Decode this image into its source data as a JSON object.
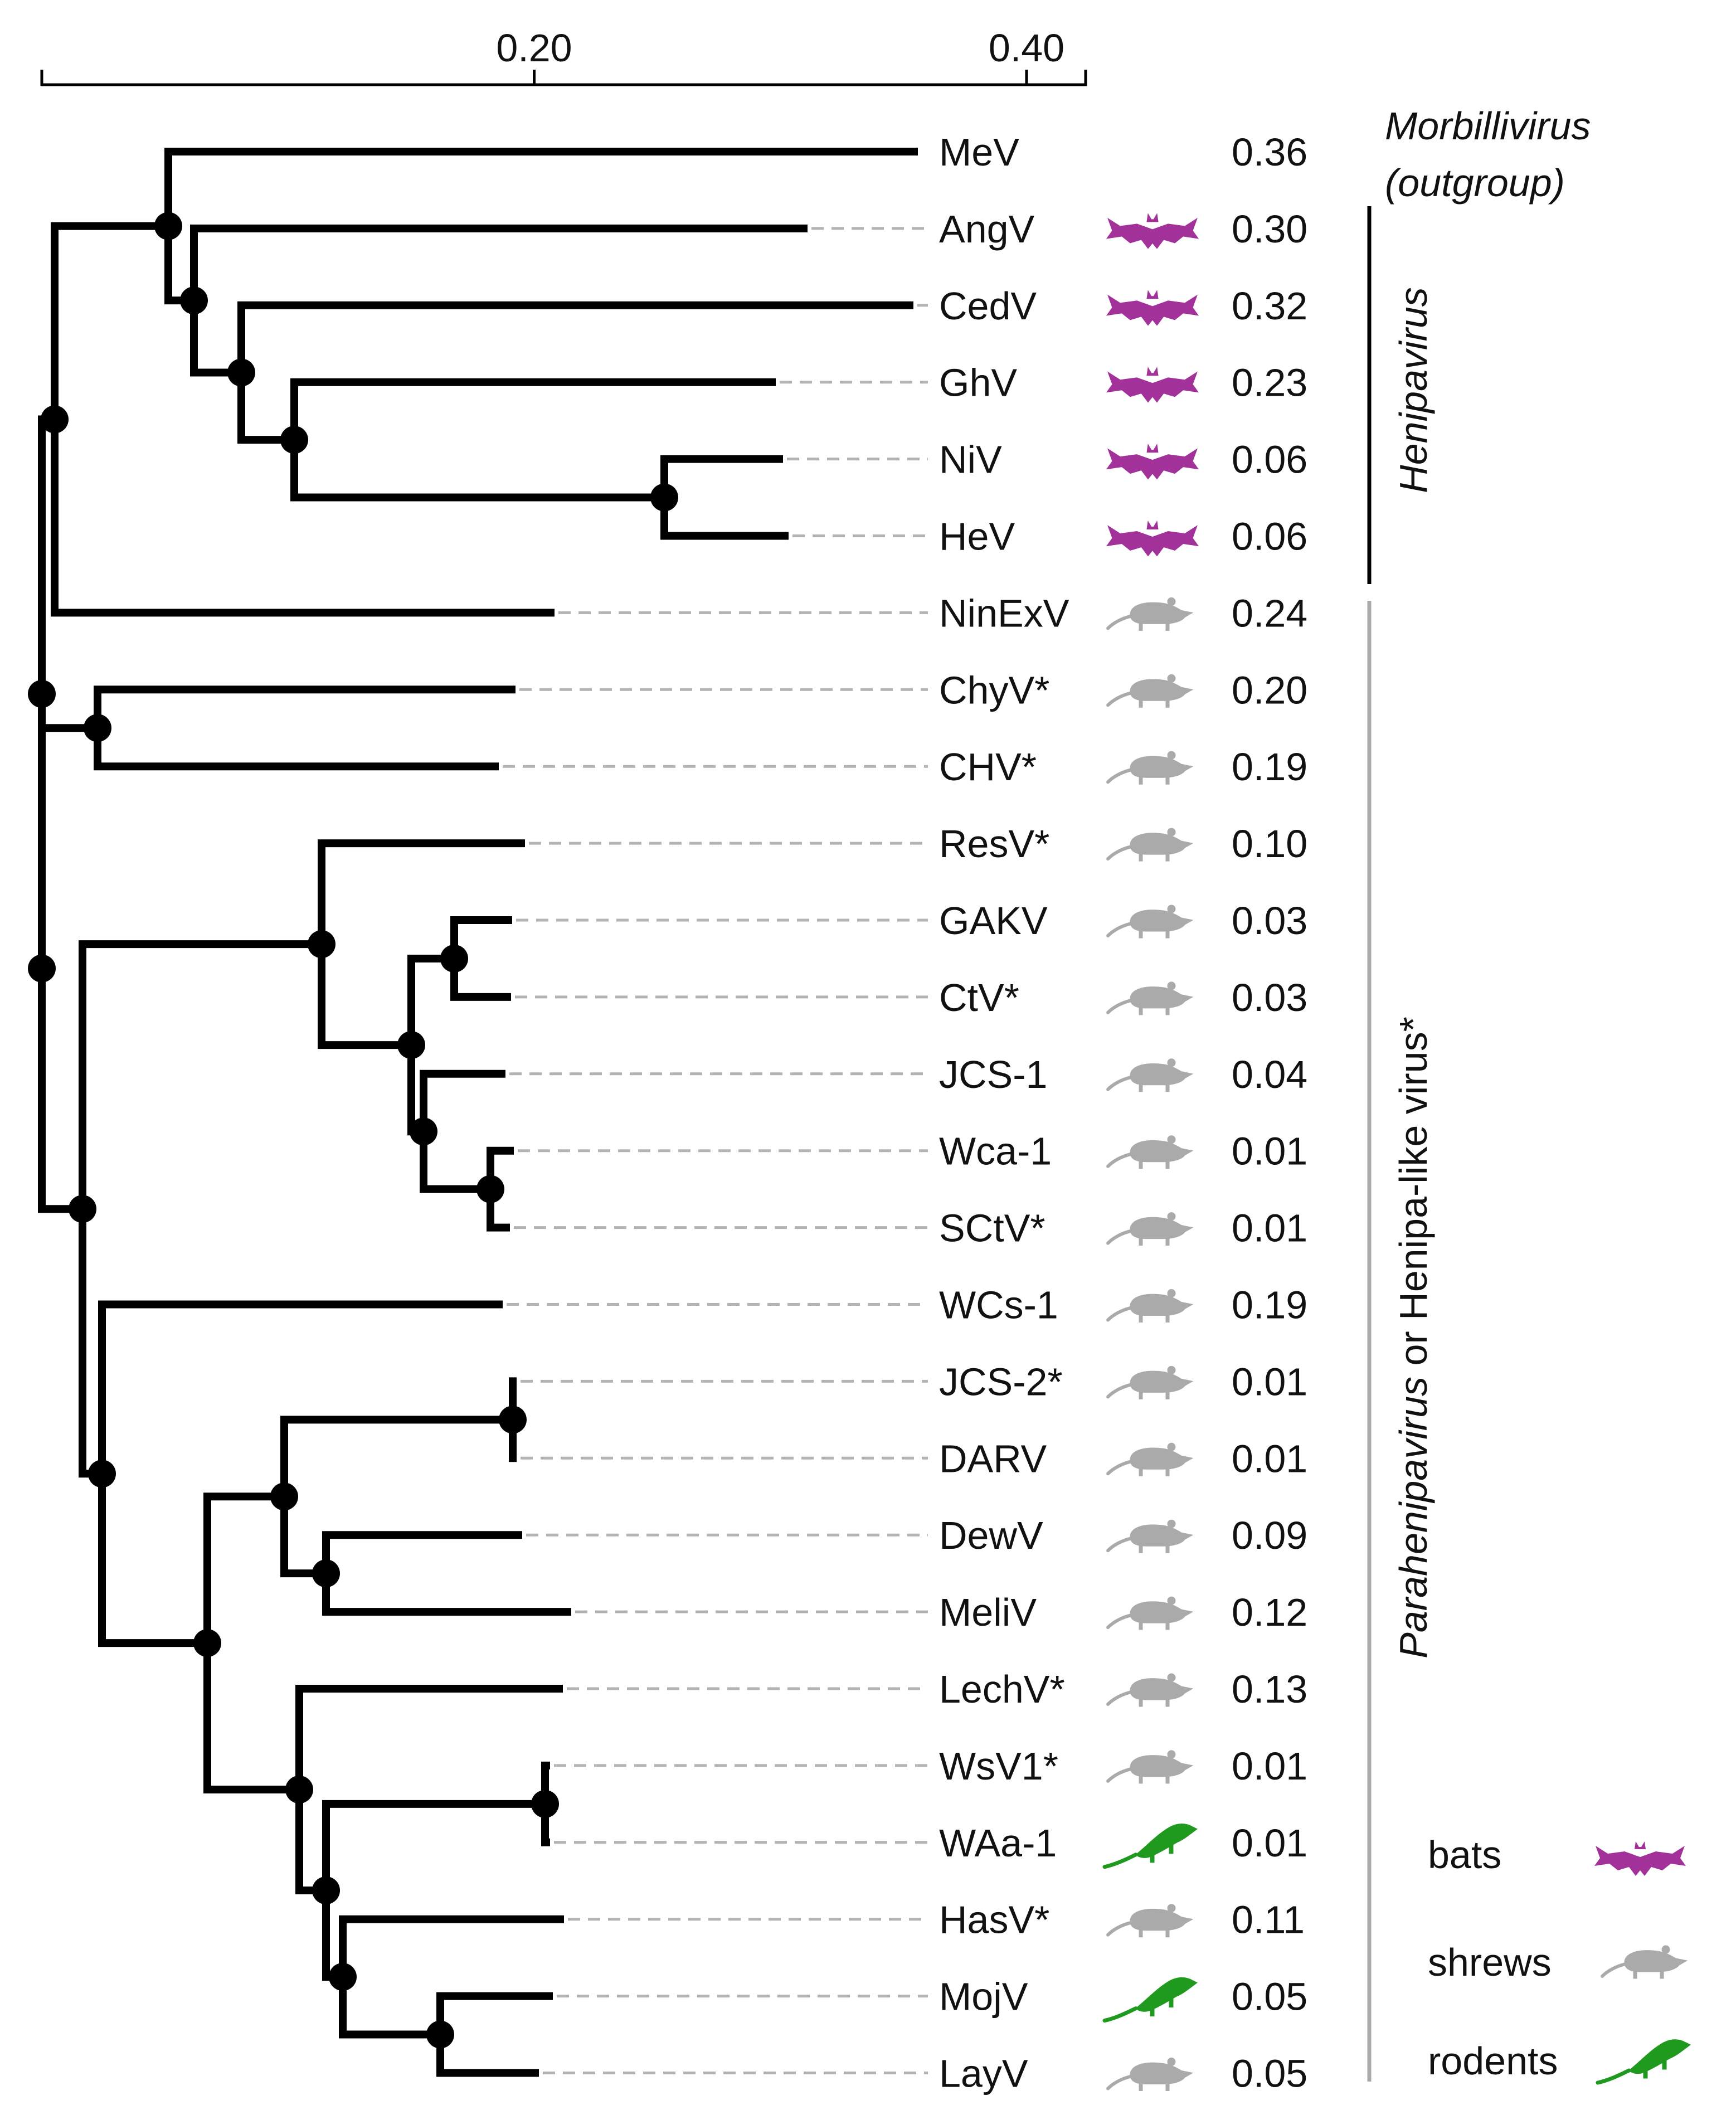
{
  "scale": {
    "ticks": [
      {
        "label": "0.20",
        "value": 0.2
      },
      {
        "label": "0.40",
        "value": 0.4
      }
    ],
    "max": 0.42
  },
  "header": {
    "outgroup_line1": "Morbillivirus",
    "outgroup_line2": "(outgroup)"
  },
  "clades": {
    "henipavirus": "Henipavirus",
    "parahenipavirus_italic": "Parahenipavirus",
    "parahenipavirus_rest": " or Henipa-like virus*"
  },
  "colors": {
    "bats": "#a2329a",
    "shrews": "#aaaaaa",
    "rodents": "#1f9a1f",
    "branch": "#000000",
    "henipa_bar": "#000000",
    "parahenipa_bar": "#aaaaaa"
  },
  "legend": [
    {
      "label": "bats",
      "icon": "bat-icon"
    },
    {
      "label": "shrews",
      "icon": "shrew-icon"
    },
    {
      "label": "rodents",
      "icon": "rodent-icon"
    }
  ],
  "taxa": [
    {
      "name": "MeV",
      "host": "none",
      "value": "0.36"
    },
    {
      "name": "AngV",
      "host": "bats",
      "value": "0.30"
    },
    {
      "name": "CedV",
      "host": "bats",
      "value": "0.32"
    },
    {
      "name": "GhV",
      "host": "bats",
      "value": "0.23"
    },
    {
      "name": "NiV",
      "host": "bats",
      "value": "0.06"
    },
    {
      "name": "HeV",
      "host": "bats",
      "value": "0.06"
    },
    {
      "name": "NinExV",
      "host": "shrews",
      "value": "0.24"
    },
    {
      "name": "ChyV*",
      "host": "shrews",
      "value": "0.20"
    },
    {
      "name": "CHV*",
      "host": "shrews",
      "value": "0.19"
    },
    {
      "name": "ResV*",
      "host": "shrews",
      "value": "0.10"
    },
    {
      "name": "GAKV",
      "host": "shrews",
      "value": "0.03"
    },
    {
      "name": "CtV*",
      "host": "shrews",
      "value": "0.03"
    },
    {
      "name": "JCS-1",
      "host": "shrews",
      "value": "0.04"
    },
    {
      "name": "Wca-1",
      "host": "shrews",
      "value": "0.01"
    },
    {
      "name": "SCtV*",
      "host": "shrews",
      "value": "0.01"
    },
    {
      "name": "WCs-1",
      "host": "shrews",
      "value": "0.19"
    },
    {
      "name": "JCS-2*",
      "host": "shrews",
      "value": "0.01"
    },
    {
      "name": "DARV",
      "host": "shrews",
      "value": "0.01"
    },
    {
      "name": "DewV",
      "host": "shrews",
      "value": "0.09"
    },
    {
      "name": "MeliV",
      "host": "shrews",
      "value": "0.12"
    },
    {
      "name": "LechV*",
      "host": "shrews",
      "value": "0.13"
    },
    {
      "name": "WsV1*",
      "host": "shrews",
      "value": "0.01"
    },
    {
      "name": "WAa-1",
      "host": "rodents",
      "value": "0.01"
    },
    {
      "name": "HasV*",
      "host": "shrews",
      "value": "0.11"
    },
    {
      "name": "MojV",
      "host": "rodents",
      "value": "0.05"
    },
    {
      "name": "LayV",
      "host": "shrews",
      "value": "0.05"
    }
  ]
}
